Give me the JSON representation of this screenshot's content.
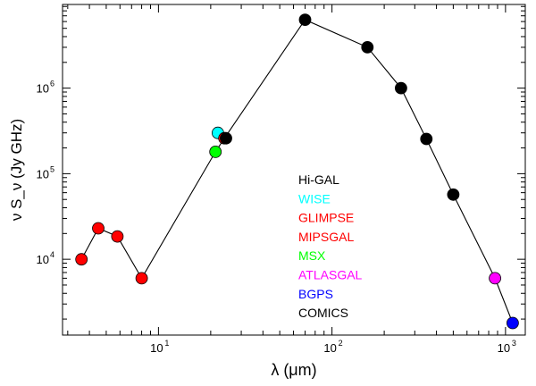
{
  "chart_data": {
    "type": "scatter",
    "title": "",
    "xlabel": "λ (μm)",
    "ylabel": "ν S_ν (Jy GHz)",
    "xscale": "log",
    "yscale": "log",
    "xlim": [
      2.8,
      1300
    ],
    "ylim": [
      1300,
      9500000
    ],
    "x_ticks": [
      {
        "value": 10,
        "base": "10",
        "exp": "1"
      },
      {
        "value": 100,
        "base": "10",
        "exp": "2"
      },
      {
        "value": 1000,
        "base": "10",
        "exp": "3"
      }
    ],
    "y_ticks": [
      {
        "value": 10000,
        "base": "10",
        "exp": "4"
      },
      {
        "value": 100000,
        "base": "10",
        "exp": "5"
      },
      {
        "value": 1000000,
        "base": "10",
        "exp": "6"
      }
    ],
    "sed_line": {
      "x": [
        3.6,
        4.5,
        5.8,
        8.0,
        21.3,
        24,
        70,
        160,
        250,
        350,
        500,
        870,
        1100
      ],
      "y": [
        10000,
        23000,
        18500,
        6000,
        180000,
        260000,
        6300000,
        3000000,
        1000000,
        255000,
        57000,
        6000,
        1800
      ]
    },
    "series": [
      {
        "name": "Hi-GAL",
        "color": "#000000",
        "x": [
          70,
          160,
          250,
          350,
          500
        ],
        "y": [
          6300000,
          3000000,
          1000000,
          255000,
          57000
        ]
      },
      {
        "name": "WISE",
        "color": "#00ffff",
        "x": [
          22
        ],
        "y": [
          300000
        ]
      },
      {
        "name": "GLIMPSE",
        "color": "#ff0000",
        "x": [
          3.6,
          4.5,
          5.8,
          8.0
        ],
        "y": [
          10000,
          23000,
          18500,
          6000
        ]
      },
      {
        "name": "MIPSGAL",
        "color": "#ff0000",
        "x": [
          24
        ],
        "y": [
          260000
        ]
      },
      {
        "name": "MSX",
        "color": "#00ff00",
        "x": [
          21.3
        ],
        "y": [
          180000
        ]
      },
      {
        "name": "ATLASGAL",
        "color": "#ff00ff",
        "x": [
          870
        ],
        "y": [
          6000
        ]
      },
      {
        "name": "BGPS",
        "color": "#0000ff",
        "x": [
          1100
        ],
        "y": [
          1800
        ]
      },
      {
        "name": "COMICS",
        "color": "#000000",
        "x": [
          24.5
        ],
        "y": [
          260000
        ]
      }
    ],
    "legend_position": "center-right"
  }
}
